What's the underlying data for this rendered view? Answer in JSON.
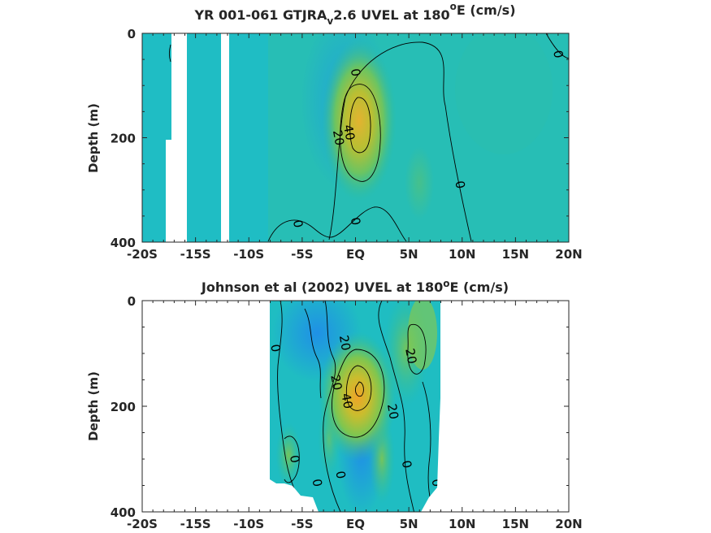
{
  "chart_data": [
    {
      "type": "heatmap",
      "title_parts": [
        "YR 001-061 GTJRA",
        "v",
        "2.6 UVEL at 180",
        "o",
        "E (cm/s)"
      ],
      "ylabel": "Depth (m)",
      "x_ticks": [
        "-20S",
        "-15S",
        "-10S",
        "-5S",
        "EQ",
        "5N",
        "10N",
        "15N",
        "20N"
      ],
      "x_tick_values": [
        -20,
        -15,
        -10,
        -5,
        0,
        5,
        10,
        15,
        20
      ],
      "y_ticks": [
        "0",
        "200",
        "400"
      ],
      "y_tick_values": [
        0,
        200,
        400
      ],
      "xlim": [
        -20,
        20
      ],
      "ylim": [
        0,
        400
      ],
      "units": "cm/s",
      "core": {
        "lat": 0.5,
        "depth": 160,
        "max": 48
      },
      "contour_labels": [
        {
          "text": "0",
          "lat": 0.0,
          "depth": 75
        },
        {
          "text": "0",
          "lat": 19.0,
          "depth": 40
        },
        {
          "text": "40",
          "lat": -0.6,
          "depth": 190
        },
        {
          "text": "20",
          "lat": -1.6,
          "depth": 200
        },
        {
          "text": "0",
          "lat": 9.8,
          "depth": 290
        },
        {
          "text": "0",
          "lat": 0.0,
          "depth": 360
        },
        {
          "text": "0",
          "lat": -5.4,
          "depth": 365
        }
      ],
      "missing_bands": [
        [
          -17.8,
          -15.9
        ],
        [
          -12.7,
          -12.0
        ]
      ]
    },
    {
      "type": "heatmap",
      "title_parts": [
        "Johnson et al (2002) UVEL at 180",
        "o",
        "E (cm/s)"
      ],
      "ylabel": "Depth (m)",
      "x_ticks": [
        "-20S",
        "-15S",
        "-10S",
        "-5S",
        "EQ",
        "5N",
        "10N",
        "15N",
        "20N"
      ],
      "x_tick_values": [
        -20,
        -15,
        -10,
        -5,
        0,
        5,
        10,
        15,
        20
      ],
      "y_ticks": [
        "0",
        "200",
        "400"
      ],
      "y_tick_values": [
        0,
        200,
        400
      ],
      "xlim": [
        -20,
        20
      ],
      "ylim": [
        0,
        400
      ],
      "units": "cm/s",
      "data_extent_lat": [
        -8,
        8
      ],
      "core": {
        "lat": 0.5,
        "depth": 165,
        "max": 55
      },
      "contour_labels": [
        {
          "text": "0",
          "lat": -7.5,
          "depth": 90
        },
        {
          "text": "20",
          "lat": -1.0,
          "depth": 80
        },
        {
          "text": "20",
          "lat": 5.2,
          "depth": 105
        },
        {
          "text": "20",
          "lat": -1.8,
          "depth": 155
        },
        {
          "text": "40",
          "lat": -0.8,
          "depth": 190
        },
        {
          "text": "20",
          "lat": 3.5,
          "depth": 210
        },
        {
          "text": "0",
          "lat": -5.7,
          "depth": 300
        },
        {
          "text": "0",
          "lat": 4.8,
          "depth": 310
        },
        {
          "text": "0",
          "lat": -3.6,
          "depth": 345
        },
        {
          "text": "0",
          "lat": -1.4,
          "depth": 330
        },
        {
          "text": "0",
          "lat": 7.6,
          "depth": 345
        }
      ]
    }
  ]
}
